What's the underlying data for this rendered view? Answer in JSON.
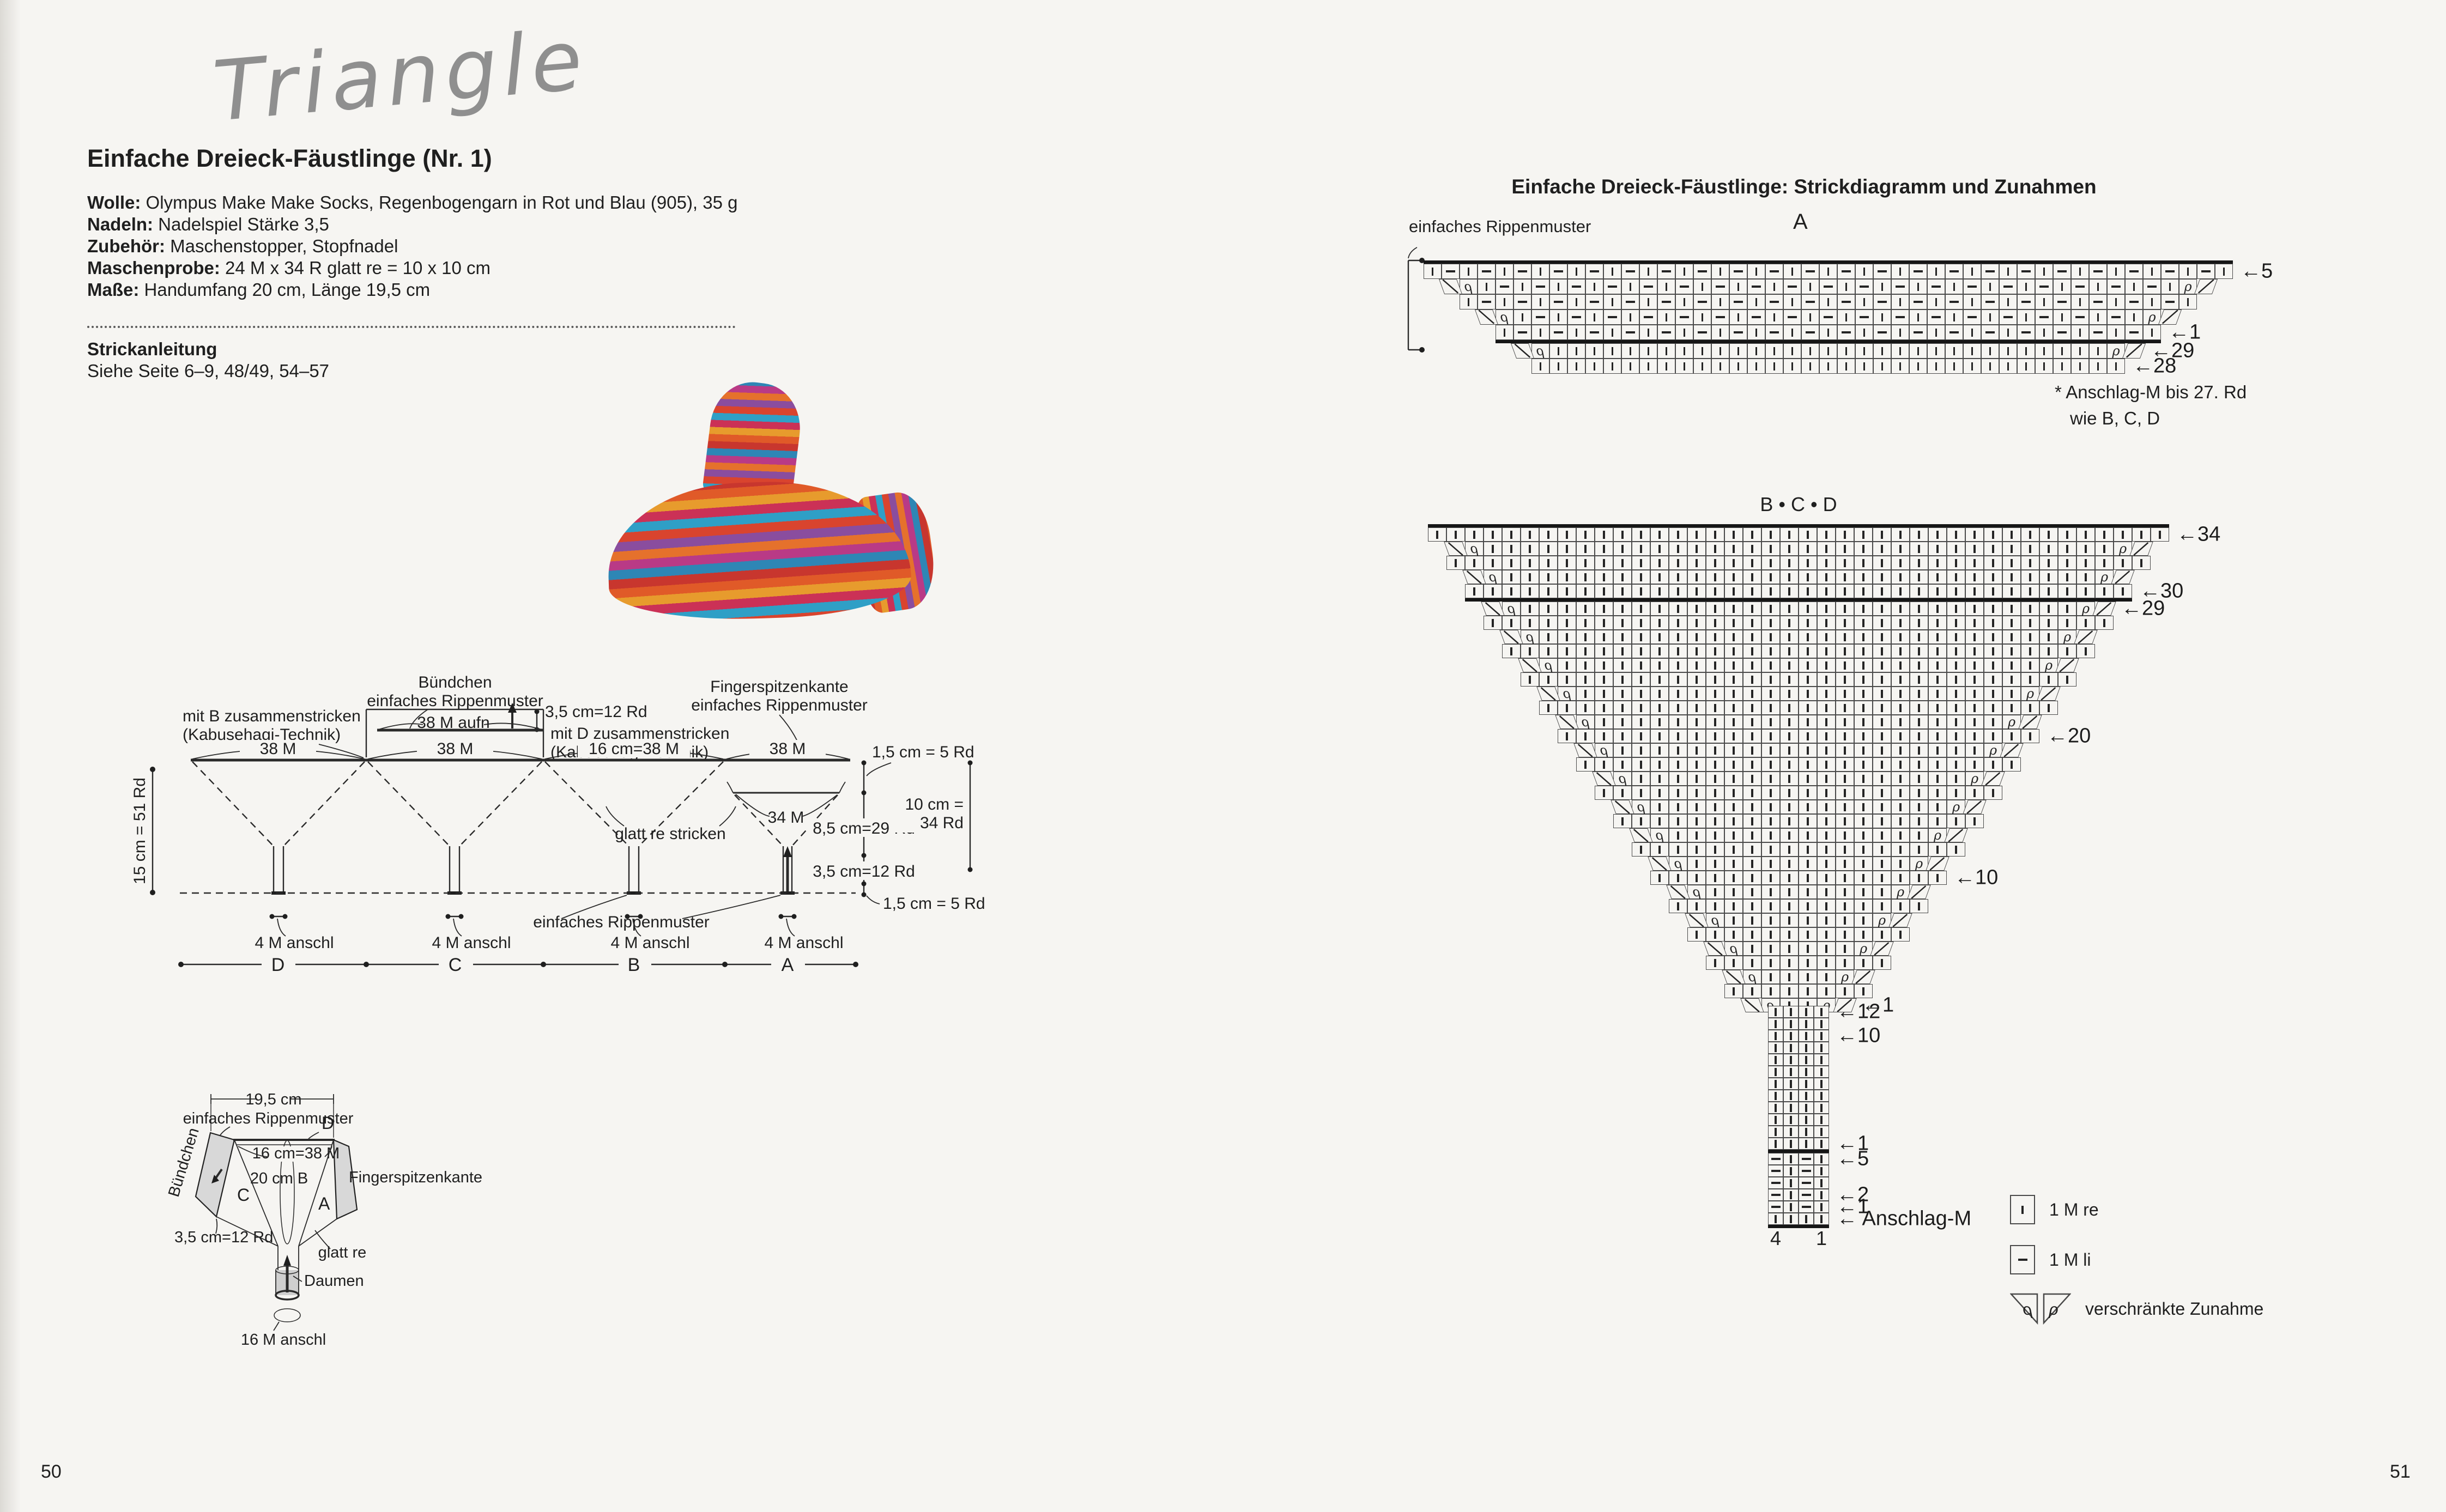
{
  "left": {
    "page_number": "50",
    "script_title": "Triangle",
    "heading": "Einfache Dreieck-Fäustlinge (Nr. 1)",
    "info": {
      "wolle_label": "Wolle:",
      "wolle": " Olympus Make Make Socks, Regenbogengarn in Rot und Blau (905), 35 g",
      "nadeln_label": "Nadeln:",
      "nadeln": " Nadelspiel Stärke 3,5",
      "zubehoer_label": "Zubehör:",
      "zubehoer": " Maschenstopper, Stopfnadel",
      "maschenprobe_label": "Maschenprobe:",
      "maschenprobe": " 24 M x 34 R glatt re = 10 x 10 cm",
      "masse_label": "Maße:",
      "masse": " Handumfang 20 cm, Länge 19,5 cm"
    },
    "anleitung_heading": "Strickanleitung",
    "anleitung_text": "Siehe Seite 6–9, 48/49, 54–57",
    "photo_colors": [
      "#c8362e",
      "#e05a28",
      "#e79b2d",
      "#cb3156",
      "#2f9fc6",
      "#d9442e",
      "#8a4d9e",
      "#e5712c",
      "#b93a86",
      "#2e86b5"
    ],
    "diagram_main": {
      "labels": {
        "buendchen": "Bündchen",
        "rippen_top": "einfaches Rippenmuster",
        "mit_b1": "mit B zusammenstricken",
        "mit_b2": "(Kabusehagi-Technik)",
        "m38_aufn": "38 M aufn",
        "cm35_top": "3,5 cm=12 Rd",
        "mit_d1": "mit D zusammenstricken",
        "mit_d2": "(Kabusehagi-Technik)",
        "fsk1": "Fingerspitzenkante",
        "fsk2": "einfaches Rippenmuster",
        "d38": "38 M",
        "c38": "38 M",
        "b38": "16 cm=38 M",
        "a38": "38 M",
        "cm15_5_top": "1,5 cm = 5 Rd",
        "m34": "34 M",
        "left_measure": "15 cm = 51 Rd",
        "cm85": "8,5 cm=29 Rd",
        "cm10a": "10 cm =",
        "cm10b": "34 Rd",
        "glatt": "glatt re stricken",
        "cm15_5_bot": "1,5 cm = 5 Rd",
        "rippen_bottom": "einfaches Rippenmuster",
        "anschl_d": "4 M anschl",
        "anschl_c": "4 M anschl",
        "anschl_b": "4 M anschl",
        "anschl_a": "4 M anschl",
        "sec_d": "D",
        "sec_c": "C",
        "sec_b": "B",
        "sec_a": "A"
      }
    },
    "diagram_mitten": {
      "labels": {
        "cm195": "19,5 cm",
        "rippen": "einfaches Rippenmuster",
        "d": "D",
        "buendchen": "Bündchen",
        "cm16": "16 cm=38 M",
        "cm20b": "20 cm B",
        "c": "C",
        "a": "A",
        "fingerspitzenkante": "Fingerspitzenkante",
        "cm35": "3,5 cm=12 Rd",
        "glatt": "glatt re",
        "daumen": "Daumen",
        "m16": "16 M anschl"
      }
    }
  },
  "right": {
    "page_number": "51",
    "title": "Einfache Dreieck-Fäustlinge: Strickdiagramm und Zunahmen",
    "symbols": {
      "loop": "ρ"
    },
    "chartA": {
      "caption": "A",
      "bracket_label": "einfaches Rippenmuster",
      "rows": [
        {
          "cells": 45,
          "pattern": "rib",
          "label": "←5",
          "thickTop": true
        },
        {
          "cells": 43,
          "pattern": "rib",
          "inc": true
        },
        {
          "cells": 41,
          "pattern": "rib"
        },
        {
          "cells": 39,
          "pattern": "rib",
          "inc": true
        },
        {
          "cells": 37,
          "pattern": "rib",
          "label": "←1",
          "thickBottom": true
        },
        {
          "cells": 35,
          "pattern": "knit",
          "inc": true,
          "label": "←29"
        },
        {
          "cells": 33,
          "pattern": "knit",
          "label": "←28"
        }
      ],
      "footnote1": "* Anschlag-M bis 27. Rd",
      "footnote2": "wie B, C, D"
    },
    "chartB": {
      "caption": "B • C • D",
      "triangle": {
        "rows": 34,
        "thickBelow": 30,
        "labels": {
          "34": "←34",
          "30": "←30",
          "29": "←29",
          "20": "←20",
          "10": "←10",
          "1": "←1"
        }
      },
      "stem": {
        "knitRows": 12,
        "knitLabels": {
          "12": "←12",
          "10": "←10",
          "1": "←1"
        },
        "ribRows": 5,
        "ribLabels": {
          "5": "←5",
          "2": "←2",
          "1": "←1"
        },
        "castonLabel": "← Anschlag-M",
        "colLeft": "4",
        "colRight": "1"
      }
    },
    "legend": {
      "knit": "1 M re",
      "purl": "1 M li",
      "inc": "verschränkte Zunahme"
    }
  }
}
